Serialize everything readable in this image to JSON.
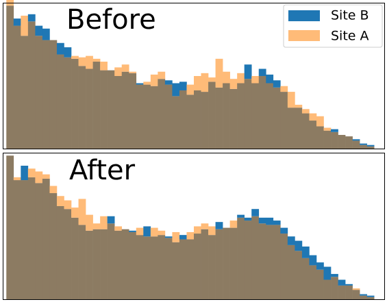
{
  "colors": {
    "site_b": "#1f77b4",
    "site_a": "#ffbb78",
    "overlap": "#8c7b62",
    "frame": "#000000",
    "background": "#ffffff"
  },
  "chart_data": [
    {
      "type": "bar",
      "panel": "top",
      "title": "Before",
      "legend": {
        "placement": "top-right",
        "entries": [
          "Site B",
          "Site A"
        ]
      },
      "x": [
        0,
        1,
        2,
        3,
        4,
        5,
        6,
        7,
        8,
        9,
        10,
        11,
        12,
        13,
        14,
        15,
        16,
        17,
        18,
        19,
        20,
        21,
        22,
        23,
        24,
        25,
        26,
        27,
        28,
        29,
        30,
        31,
        32,
        33,
        34,
        35,
        36,
        37,
        38,
        39,
        40,
        41,
        42,
        43,
        44,
        45,
        46,
        47,
        48,
        49,
        50
      ],
      "xlim": [
        -1,
        52
      ],
      "ylim": [
        0,
        102
      ],
      "grid": false,
      "series": [
        {
          "name": "Site B",
          "values": [
            100,
            91,
            79,
            94,
            86,
            84,
            76,
            74,
            71,
            63,
            58,
            56,
            61,
            55,
            55,
            51,
            54,
            53,
            46,
            45,
            44,
            49,
            48,
            46,
            47,
            38,
            41,
            40,
            47,
            43,
            46,
            42,
            46,
            59,
            46,
            56,
            52,
            48,
            40,
            29,
            29,
            25,
            20,
            16,
            13,
            14,
            10,
            9,
            7,
            4,
            3
          ]
        },
        {
          "name": "Site A",
          "values": [
            104,
            86,
            93,
            89,
            79,
            76,
            76,
            66,
            64,
            65,
            64,
            65,
            63,
            61,
            55,
            57,
            59,
            54,
            45,
            47,
            52,
            54,
            45,
            37,
            41,
            45,
            51,
            53,
            50,
            63,
            54,
            49,
            53,
            49,
            51,
            51,
            46,
            43,
            44,
            40,
            31,
            28,
            25,
            23,
            15,
            12,
            10,
            9,
            6,
            3,
            2
          ]
        }
      ]
    },
    {
      "type": "bar",
      "panel": "bottom",
      "title": "After",
      "x": [
        0,
        1,
        2,
        3,
        4,
        5,
        6,
        7,
        8,
        9,
        10,
        11,
        12,
        13,
        14,
        15,
        16,
        17,
        18,
        19,
        20,
        21,
        22,
        23,
        24,
        25,
        26,
        27,
        28,
        29,
        30,
        31,
        32,
        33,
        34,
        35,
        36,
        37,
        38,
        39,
        40,
        41,
        42,
        43,
        44,
        45,
        46,
        47,
        48,
        49,
        50
      ],
      "xlim": [
        -1,
        52
      ],
      "ylim": [
        0,
        102
      ],
      "grid": false,
      "series": [
        {
          "name": "Site B",
          "values": [
            100,
            83,
            93,
            85,
            81,
            84,
            74,
            65,
            63,
            57,
            52,
            48,
            49,
            49,
            58,
            48,
            49,
            48,
            45,
            51,
            44,
            45,
            44,
            40,
            45,
            42,
            46,
            49,
            45,
            54,
            50,
            50,
            59,
            57,
            63,
            57,
            57,
            55,
            50,
            44,
            41,
            37,
            31,
            26,
            23,
            18,
            14,
            11,
            7,
            4,
            3
          ]
        },
        {
          "name": "Site A",
          "values": [
            100,
            85,
            83,
            91,
            89,
            87,
            79,
            72,
            69,
            64,
            70,
            59,
            53,
            58,
            53,
            51,
            49,
            47,
            50,
            44,
            50,
            48,
            43,
            47,
            42,
            47,
            51,
            53,
            51,
            49,
            50,
            55,
            57,
            55,
            58,
            53,
            52,
            52,
            46,
            38,
            34,
            29,
            24,
            21,
            14,
            16,
            10,
            10,
            8,
            3,
            2
          ]
        }
      ]
    }
  ]
}
